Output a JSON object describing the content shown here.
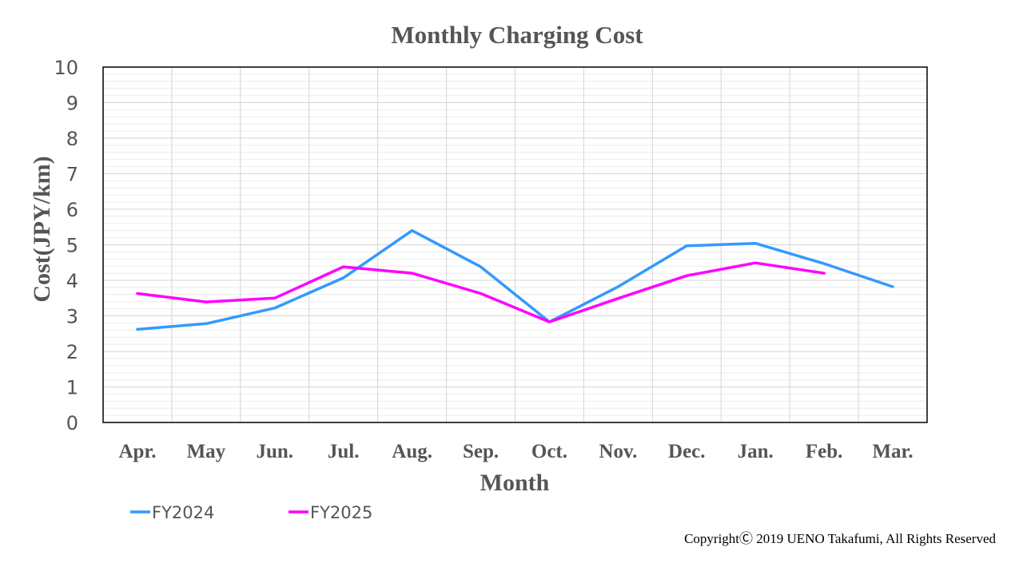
{
  "chart_data": {
    "type": "line",
    "title": "Monthly Charging Cost",
    "xlabel": "Month",
    "ylabel": "Cost(JPY/km)",
    "categories": [
      "Apr.",
      "May",
      "Jun.",
      "Jul.",
      "Aug.",
      "Sep.",
      "Oct.",
      "Nov.",
      "Dec.",
      "Jan.",
      "Feb.",
      "Mar."
    ],
    "yticks": [
      "0",
      "1",
      "2",
      "3",
      "4",
      "5",
      "6",
      "7",
      "8",
      "9",
      "10"
    ],
    "ylim": [
      0,
      10
    ],
    "grid": true,
    "legend_position": "bottom-left",
    "series": [
      {
        "name": "FY2024",
        "color": "#3399ff",
        "values": [
          2.62,
          2.78,
          3.22,
          4.07,
          5.4,
          4.38,
          2.83,
          3.82,
          4.97,
          5.04,
          4.47,
          3.82
        ]
      },
      {
        "name": "FY2025",
        "color": "#ff00ff",
        "values": [
          3.63,
          3.39,
          3.5,
          4.38,
          4.2,
          3.63,
          2.83,
          3.49,
          4.13,
          4.49,
          4.2,
          null
        ]
      }
    ]
  },
  "copyright": "CopyrightⒸ 2019 UENO Takafumi, All Rights Reserved"
}
